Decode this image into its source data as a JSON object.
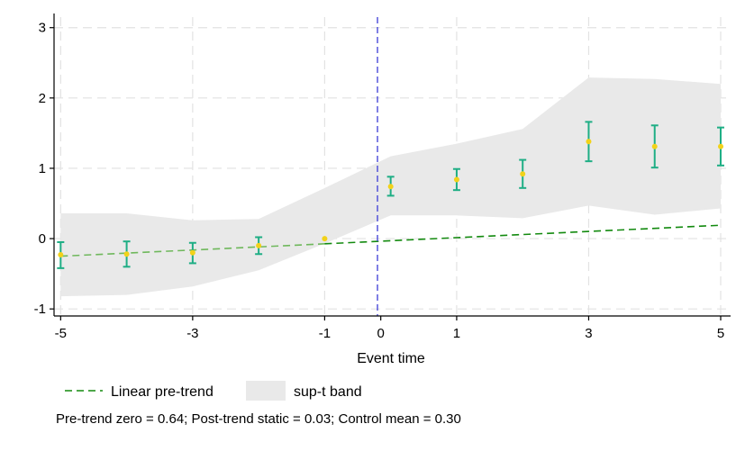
{
  "chart_data": {
    "type": "scatter",
    "xlabel": "Event time",
    "ylabel": "",
    "xlim": [
      -5.1,
      5.15
    ],
    "ylim": [
      -1.1,
      3.15
    ],
    "x_ticks": [
      -5,
      -3,
      -1,
      1,
      3,
      5
    ],
    "x_tick_labels": [
      "-5",
      "-3",
      "-1",
      "1",
      "3",
      "5"
    ],
    "extra_x_tick": {
      "value": -0.15,
      "label": "0"
    },
    "y_ticks": [
      -1,
      0,
      1,
      2,
      3
    ],
    "y_tick_labels": [
      "-1",
      "0",
      "1",
      "2",
      "3"
    ],
    "grid": true,
    "event_line_x": -0.2,
    "points": {
      "name": "Estimate",
      "x": [
        -5,
        -4,
        -3,
        -2,
        -1,
        0,
        1,
        2,
        3,
        4,
        5
      ],
      "y": [
        -0.23,
        -0.22,
        -0.2,
        -0.1,
        0.0,
        0.74,
        0.84,
        0.92,
        1.38,
        1.31,
        1.31
      ],
      "ci_low": [
        -0.42,
        -0.4,
        -0.35,
        -0.22,
        null,
        0.61,
        0.69,
        0.72,
        1.1,
        1.01,
        1.04
      ],
      "ci_high": [
        -0.05,
        -0.04,
        -0.06,
        0.02,
        null,
        0.88,
        0.99,
        1.12,
        1.66,
        1.61,
        1.58
      ]
    },
    "band": {
      "name": "sup-t band",
      "x": [
        -5,
        -4,
        -3,
        -2,
        -1,
        0,
        1,
        2,
        3,
        4,
        5
      ],
      "lower": [
        -0.82,
        -0.8,
        -0.68,
        -0.45,
        -0.07,
        0.33,
        0.33,
        0.29,
        0.47,
        0.34,
        0.43
      ],
      "upper": [
        0.36,
        0.36,
        0.26,
        0.28,
        0.72,
        1.17,
        1.35,
        1.56,
        2.29,
        2.27,
        2.2
      ]
    },
    "trend": {
      "name": "Linear pre-trend",
      "x": [
        -5,
        5
      ],
      "y": [
        -0.25,
        0.19
      ]
    },
    "legend": {
      "position": "bottom",
      "entries": [
        {
          "label": "Linear pre-trend",
          "kind": "dashed-line",
          "color": "#138a0f"
        },
        {
          "label": "sup-t band",
          "kind": "fill",
          "color": "#e9e9e9"
        }
      ]
    },
    "note": "Pre-trend zero = 0.64; Post-trend static = 0.03; Control mean = 0.30"
  },
  "colors": {
    "band": "#e9e9e9",
    "ci_bars": "#1fae85",
    "points": "#f2d21a",
    "trend": "#138a0f",
    "trend_pre": "#6fb85c",
    "event_line": "#3b3bd6",
    "grid": "#e2e2e2",
    "axis": "#000000"
  }
}
